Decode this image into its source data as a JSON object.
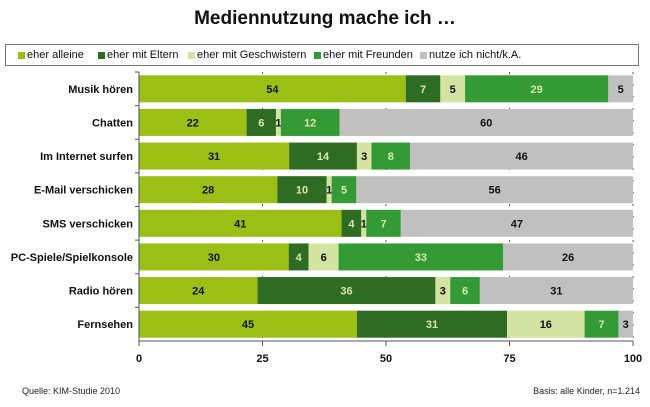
{
  "chart_data": {
    "type": "bar",
    "orientation": "horizontal",
    "stacked": true,
    "title": "Mediennutzung mache ich …",
    "categories": [
      "Musik hören",
      "Chatten",
      "Im Internet surfen",
      "E-Mail verschicken",
      "SMS verschicken",
      "PC-Spiele/Spielkonsole",
      "Radio hören",
      "Fernsehen"
    ],
    "series": [
      {
        "name": "eher alleine",
        "color": "#9cbf16",
        "values": [
          54,
          22,
          31,
          28,
          41,
          30,
          24,
          45
        ]
      },
      {
        "name": "eher mit Eltern",
        "color": "#2e6b23",
        "values": [
          7,
          6,
          14,
          10,
          4,
          4,
          36,
          31
        ]
      },
      {
        "name": "eher mit Geschwistern",
        "color": "#d2e3a2",
        "values": [
          5,
          1,
          3,
          1,
          1,
          6,
          3,
          16
        ]
      },
      {
        "name": "eher mit Freunden",
        "color": "#339a35",
        "values": [
          29,
          12,
          8,
          5,
          7,
          33,
          6,
          7
        ]
      },
      {
        "name": "nutze ich nicht/k.A.",
        "color": "#c0c0c0",
        "values": [
          5,
          60,
          46,
          56,
          47,
          26,
          31,
          3
        ]
      }
    ],
    "xlim": [
      0,
      100
    ],
    "xticks": [
      "0",
      "25",
      "50",
      "75",
      "100"
    ],
    "grid": "vertical dashed",
    "legend_position": "top"
  },
  "footer": {
    "source": "Quelle: KIM-Studie 2010",
    "basis": "Basis: alle Kinder, n=1.214"
  }
}
